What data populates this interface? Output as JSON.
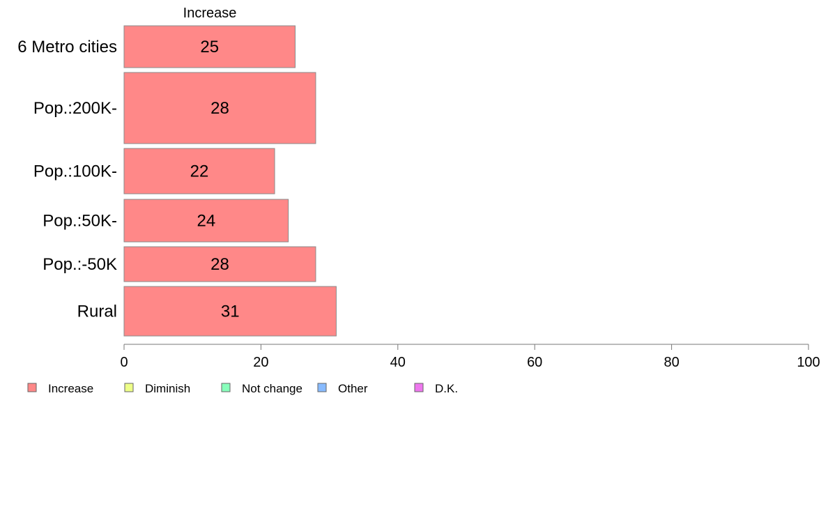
{
  "chart_data": {
    "type": "bar",
    "orientation": "horizontal",
    "stacked": true,
    "categories": [
      "6 Metro cities",
      "Pop.:200K-",
      "Pop.:100K-",
      "Pop.:50K-",
      "Pop.:-50K",
      "Rural"
    ],
    "series": [
      {
        "name": "Increase",
        "values": [
          25,
          28,
          22,
          24,
          28,
          31
        ],
        "color": "#FF8888"
      }
    ],
    "segment_title": "Increase",
    "xlim": [
      0,
      100
    ],
    "x_ticks": [
      0,
      20,
      40,
      60,
      80,
      100
    ],
    "grid": false,
    "legend": {
      "position": "bottom-left",
      "entries": [
        {
          "label": "Increase",
          "color": "#FF8888"
        },
        {
          "label": "Diminish",
          "color": "#EEFF88"
        },
        {
          "label": "Not change",
          "color": "#88FFBB"
        },
        {
          "label": "Other",
          "color": "#88BBFF"
        },
        {
          "label": "D.K.",
          "color": "#EE77EE"
        }
      ]
    },
    "title": "",
    "xlabel": "",
    "ylabel": ""
  }
}
